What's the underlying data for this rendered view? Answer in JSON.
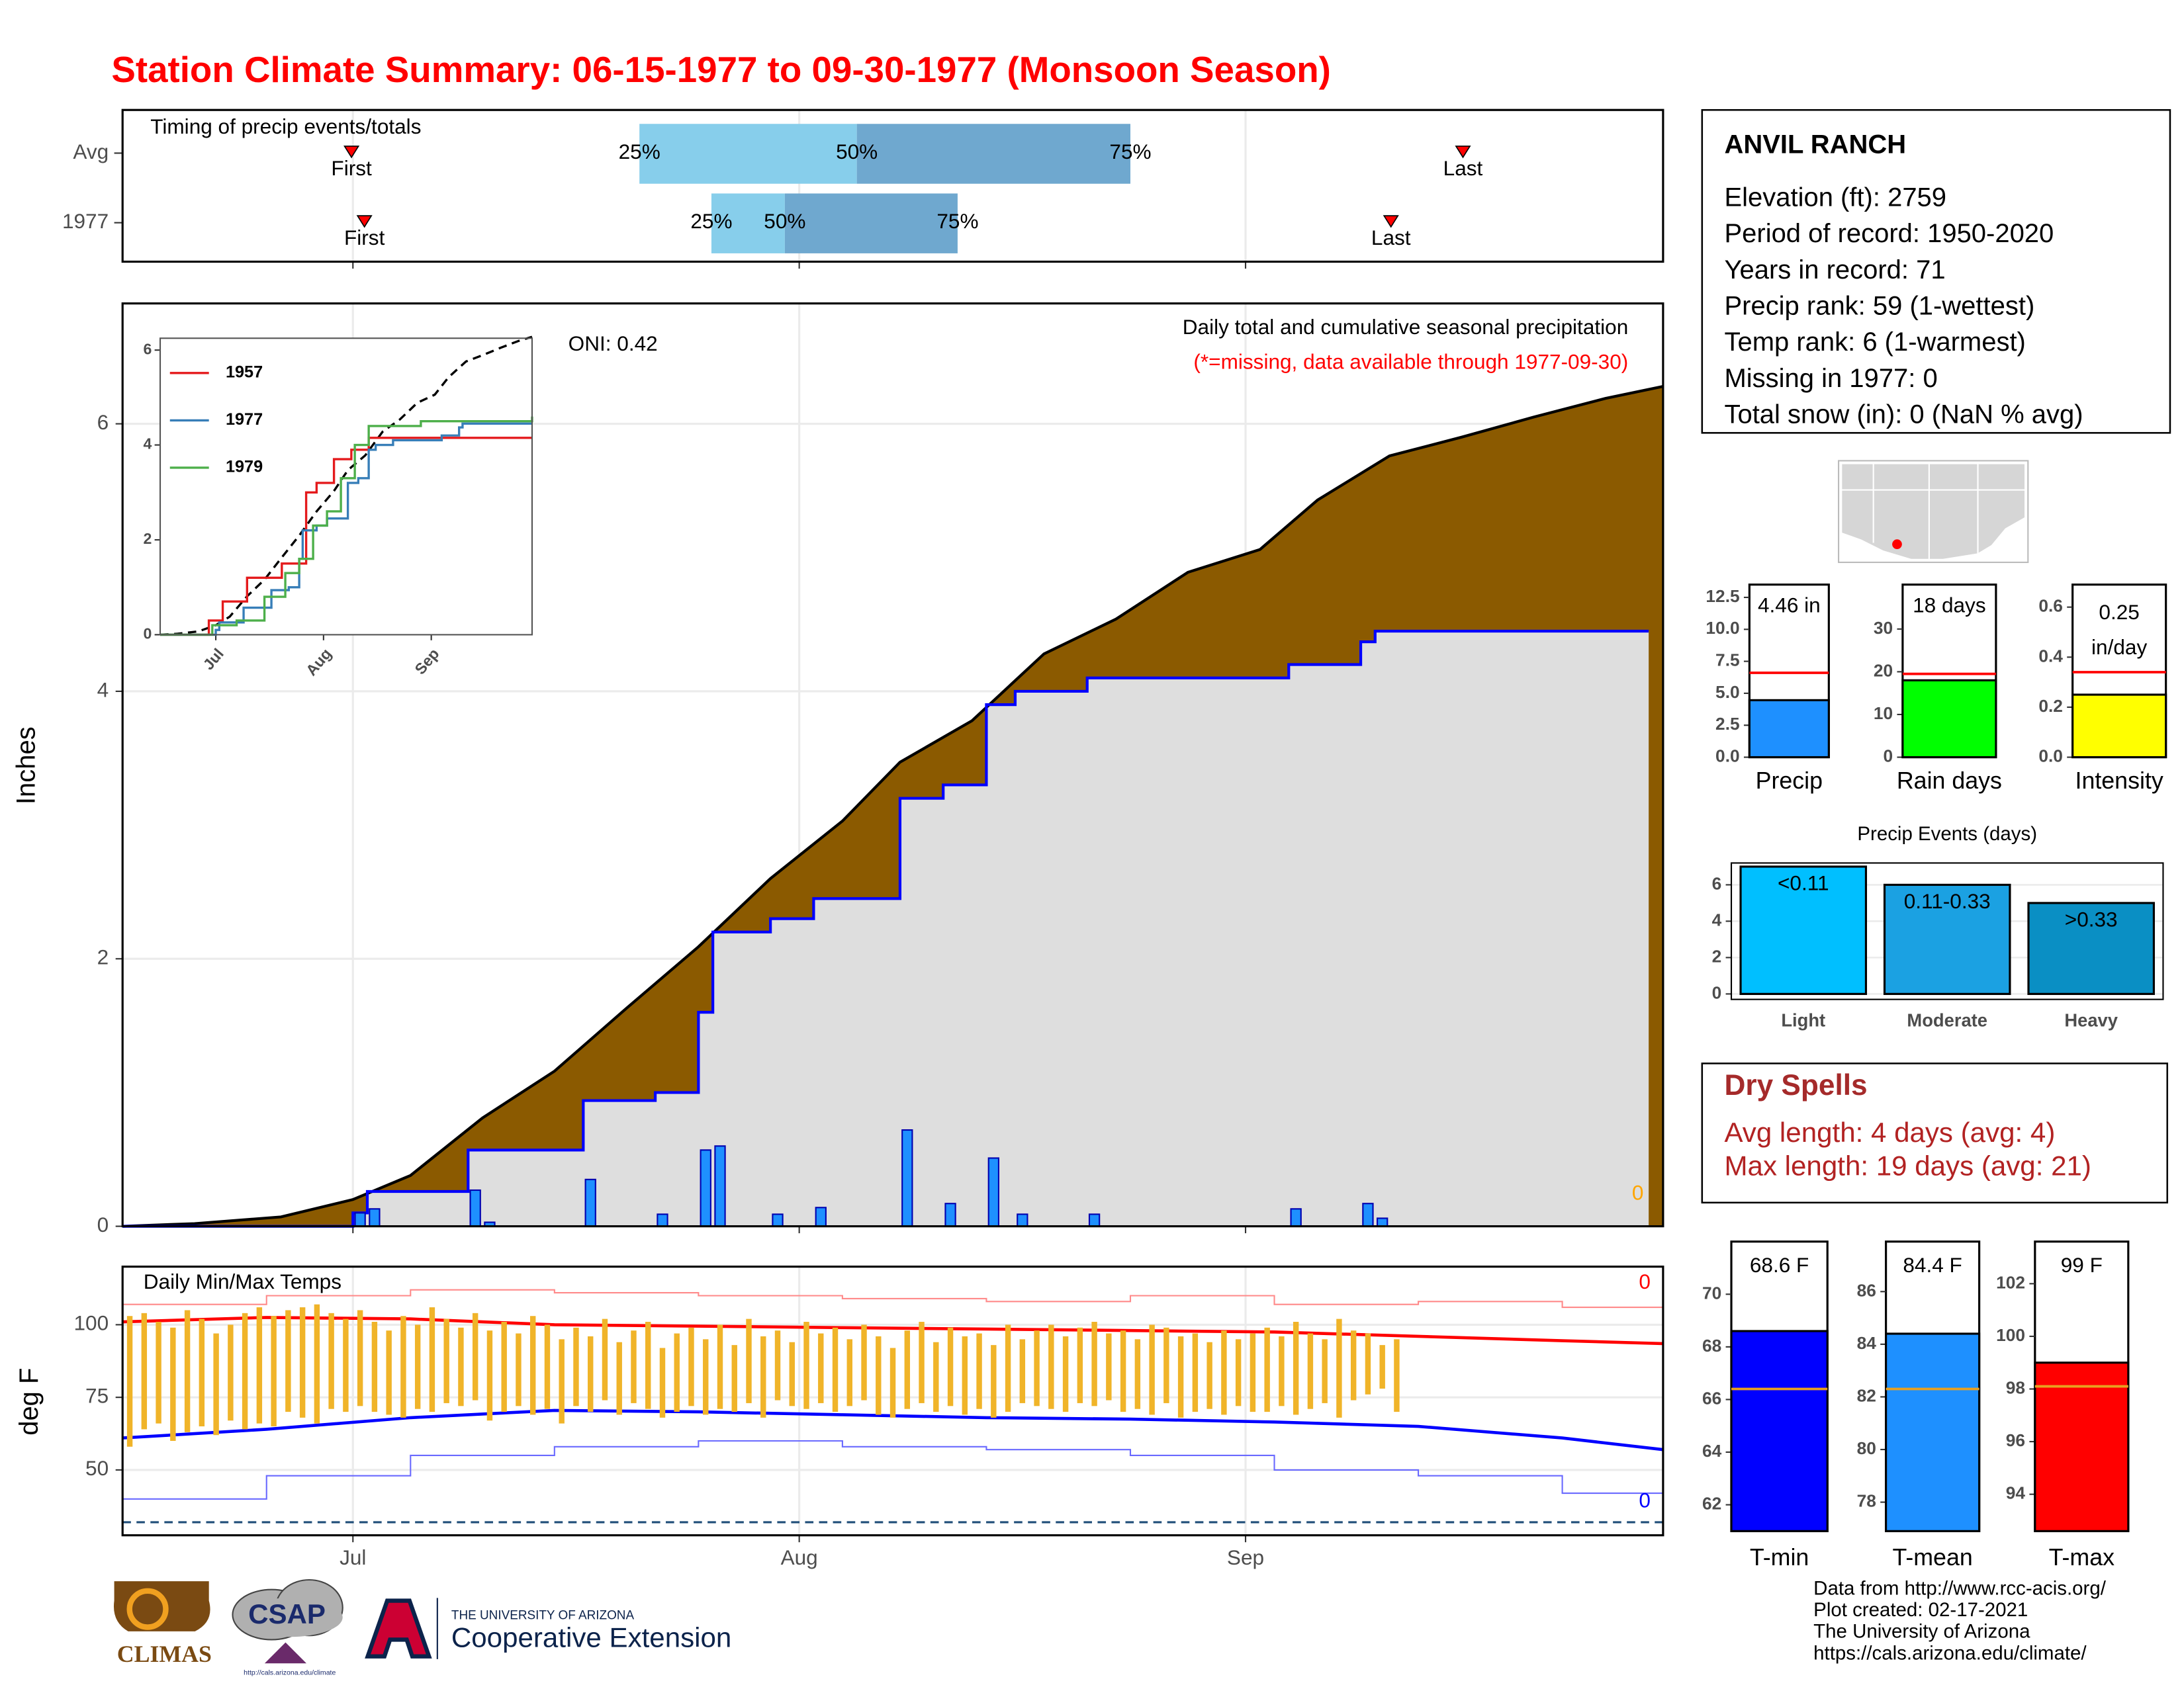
{
  "header": {
    "title": "Station Climate Summary: 06-15-1977 to 09-30-1977 (Monsoon Season)"
  },
  "station": {
    "name": "ANVIL RANCH",
    "lines": [
      "Elevation (ft): 2759",
      "Period of record: 1950-2020",
      "Years in record: 71",
      "Precip rank: 59 (1-wettest)",
      "Temp rank: 6 (1-warmest)",
      "Missing in 1977: 0",
      "Total snow (in): 0 (NaN % avg)"
    ]
  },
  "dry_spells": {
    "title": "Dry Spells",
    "lines": [
      "Avg length: 4 days (avg: 4)",
      "Max length: 19 days (avg: 21)"
    ]
  },
  "footer": {
    "climas": "CLIMAS",
    "csap": "CSAP",
    "csap_url": "http://cals.arizona.edu/climate",
    "ua_name": "THE UNIVERSITY OF ARIZONA",
    "ua_unit": "Cooperative Extension",
    "credits": [
      "Data from http://www.rcc-acis.org/",
      "Plot created: 02-17-2021",
      "The University of Arizona",
      "https://cals.arizona.edu/climate/"
    ]
  },
  "chart_data": [
    {
      "type": "timing",
      "title": "Timing of precip events/totals",
      "categories": [
        "Avg",
        "1977"
      ],
      "first": [
        15.9,
        16.8
      ],
      "q25": [
        35.9,
        40.9
      ],
      "q50": [
        51,
        46
      ],
      "q75": [
        70,
        58
      ],
      "last": [
        93.1,
        88.1
      ],
      "marker_labels": [
        "First",
        "Last"
      ],
      "quantile_labels": [
        "25%",
        "50%",
        "75%"
      ],
      "colors": [
        "#87ceeb",
        "#6fa8cf"
      ],
      "marker_color": "#ff0000",
      "xlim": [
        0,
        107
      ],
      "xticks": [
        16,
        47,
        78
      ],
      "grid": true
    },
    {
      "type": "precip",
      "title": "Daily total and cumulative seasonal precipitation",
      "subtitle": "(*=missing, data available through 1977-09-30)",
      "subtitle_color": "#ff0000",
      "annotation": "ONI: 0.42",
      "missing_count": 0,
      "missing_color": "#ffa500",
      "y_label": "Inches",
      "xlim": [
        0,
        107
      ],
      "ylim": [
        0,
        6.9
      ],
      "yticks": [
        0,
        2,
        4,
        6
      ],
      "xticks": [
        16,
        47,
        78
      ],
      "grid": true,
      "avg": {
        "color": "#8b5a00",
        "x": [
          0,
          5,
          11,
          16,
          20,
          25,
          30,
          35,
          40,
          45,
          50,
          54,
          59,
          64,
          69,
          74,
          79,
          83,
          88,
          93,
          98,
          103,
          107
        ],
        "values": [
          0,
          0.02,
          0.07,
          0.2,
          0.38,
          0.81,
          1.16,
          1.63,
          2.09,
          2.6,
          3.03,
          3.47,
          3.78,
          4.28,
          4.54,
          4.89,
          5.06,
          5.43,
          5.76,
          5.9,
          6.05,
          6.19,
          6.28
        ]
      },
      "season": {
        "color": "#0000ff",
        "fill": "#dedede",
        "x": [
          0,
          16,
          17,
          24,
          32,
          37,
          40,
          41,
          45,
          48,
          54,
          57,
          60,
          62,
          67,
          81,
          86,
          87,
          106
        ],
        "values": [
          0,
          0.1,
          0.26,
          0.57,
          0.94,
          1.0,
          1.6,
          2.2,
          2.3,
          2.45,
          3.2,
          3.3,
          3.9,
          4.0,
          4.1,
          4.2,
          4.37,
          4.45,
          4.45
        ]
      },
      "daily": {
        "color": "#1e90ff",
        "x": [
          16,
          17,
          24,
          25,
          32,
          37,
          40,
          41,
          45,
          48,
          54,
          57,
          60,
          62,
          67,
          81,
          86,
          87
        ],
        "values": [
          0.1,
          0.13,
          0.27,
          0.03,
          0.35,
          0.09,
          0.57,
          0.6,
          0.09,
          0.14,
          0.72,
          0.17,
          0.51,
          0.09,
          0.09,
          0.13,
          0.17,
          0.06
        ]
      }
    },
    {
      "type": "line",
      "xlim": [
        0,
        107
      ],
      "ylim": [
        0,
        6.25
      ],
      "yticks": [
        0,
        2,
        4,
        6
      ],
      "xticks": [
        {
          "value": 16,
          "label": "Jul"
        },
        {
          "value": 47,
          "label": "Aug"
        },
        {
          "value": 78,
          "label": "Sep"
        }
      ],
      "series": [
        {
          "name": "1957",
          "color": "#e41a1c",
          "x": [
            0,
            14,
            18,
            25,
            30,
            35,
            42,
            45,
            50,
            55,
            60,
            107
          ],
          "values": [
            0,
            0.3,
            0.7,
            1.2,
            1.2,
            1.5,
            3.0,
            3.2,
            3.7,
            3.9,
            4.15,
            4.15
          ]
        },
        {
          "name": "1977",
          "color": "#377eb8",
          "x": [
            0,
            16,
            17,
            24,
            32,
            37,
            40,
            41,
            45,
            48,
            54,
            57,
            60,
            62,
            67,
            81,
            86,
            87,
            107
          ],
          "values": [
            0,
            0.1,
            0.26,
            0.57,
            0.94,
            1.0,
            1.6,
            2.2,
            2.3,
            2.45,
            3.2,
            3.3,
            3.9,
            4.0,
            4.1,
            4.2,
            4.37,
            4.45,
            4.45
          ]
        },
        {
          "name": "1979",
          "color": "#4daf4a",
          "x": [
            0,
            15,
            22,
            30,
            36,
            40,
            44,
            48,
            52,
            56,
            60,
            75,
            107
          ],
          "values": [
            0,
            0.2,
            0.3,
            0.8,
            1.3,
            1.6,
            2.3,
            2.6,
            3.3,
            4.0,
            4.4,
            4.5,
            4.6
          ]
        }
      ],
      "avg": {
        "color": "#000000",
        "x": [
          0,
          5,
          11,
          16,
          20,
          25,
          30,
          35,
          40,
          45,
          50,
          54,
          59,
          64,
          69,
          74,
          79,
          83,
          88,
          93,
          98,
          103,
          107
        ],
        "values": [
          0,
          0.02,
          0.07,
          0.2,
          0.38,
          0.81,
          1.16,
          1.63,
          2.09,
          2.6,
          3.03,
          3.47,
          3.78,
          4.28,
          4.54,
          4.89,
          5.06,
          5.43,
          5.76,
          5.9,
          6.05,
          6.19,
          6.28
        ]
      }
    },
    {
      "type": "temps",
      "title": "Daily Min/Max Temps",
      "y_label": "deg F",
      "xlim": [
        0,
        107
      ],
      "ylim": [
        27.5,
        120
      ],
      "yticks": [
        50,
        75,
        100
      ],
      "xticks": [
        {
          "value": 16,
          "label": "Jul"
        },
        {
          "value": 47,
          "label": "Aug"
        },
        {
          "value": 78,
          "label": "Sep"
        }
      ],
      "grid": true,
      "bar_color": "#f0b429",
      "x": [
        0,
        1,
        2,
        3,
        4,
        5,
        6,
        7,
        8,
        9,
        10,
        11,
        12,
        13,
        14,
        15,
        16,
        17,
        18,
        19,
        20,
        21,
        22,
        23,
        24,
        25,
        26,
        27,
        28,
        29,
        30,
        31,
        32,
        33,
        34,
        35,
        36,
        37,
        38,
        39,
        40,
        41,
        42,
        43,
        44,
        45,
        46,
        47,
        48,
        49,
        50,
        51,
        52,
        53,
        54,
        55,
        56,
        57,
        58,
        59,
        60,
        61,
        62,
        63,
        64,
        65,
        66,
        67,
        68,
        69,
        70,
        71,
        72,
        73,
        74,
        75,
        76,
        77,
        78,
        79,
        80,
        81,
        82,
        83,
        84,
        85,
        86,
        87,
        88
      ],
      "max": [
        103,
        104,
        101,
        99,
        105,
        102,
        97,
        100,
        104,
        106,
        103,
        105,
        106,
        107,
        104,
        102,
        105,
        101,
        98,
        103,
        100,
        106,
        102,
        99,
        104,
        98,
        101,
        97,
        103,
        100,
        95,
        99,
        96,
        102,
        94,
        98,
        101,
        92,
        97,
        99,
        95,
        100,
        93,
        102,
        96,
        98,
        94,
        101,
        97,
        99,
        95,
        100,
        96,
        92,
        98,
        101,
        94,
        99,
        96,
        97,
        93,
        100,
        95,
        98,
        100,
        96,
        99,
        101,
        97,
        98,
        95,
        100,
        99,
        96,
        97,
        94,
        98,
        95,
        97,
        99,
        96,
        101,
        97,
        95,
        102,
        98,
        97,
        93,
        95
      ],
      "min": [
        58,
        64,
        66,
        60,
        63,
        65,
        62,
        67,
        64,
        66,
        65,
        70,
        68,
        66,
        71,
        70,
        72,
        70,
        69,
        68,
        71,
        70,
        73,
        72,
        74,
        67,
        70,
        72,
        69,
        71,
        66,
        72,
        70,
        74,
        69,
        73,
        71,
        68,
        70,
        72,
        69,
        71,
        70,
        73,
        68,
        74,
        72,
        71,
        73,
        70,
        72,
        74,
        69,
        68,
        71,
        73,
        70,
        72,
        69,
        71,
        68,
        70,
        73,
        72,
        71,
        70,
        73,
        72,
        74,
        70,
        71,
        69,
        73,
        68,
        70,
        71,
        69,
        72,
        70,
        70,
        72,
        69,
        71,
        73,
        68,
        74,
        76,
        78,
        70
      ],
      "avg_x": [
        0,
        10,
        20,
        30,
        40,
        50,
        60,
        70,
        80,
        90,
        100,
        107
      ],
      "avg_max": [
        101,
        102.5,
        102,
        100,
        99.5,
        99,
        98.5,
        98,
        97.5,
        96,
        94.5,
        93.5
      ],
      "avg_max_color": "#ff0000",
      "avg_min": [
        61,
        64,
        68,
        70.5,
        70,
        69,
        68,
        67.5,
        66.5,
        65,
        61,
        57
      ],
      "avg_min_color": "#0000ff",
      "record_high": [
        107,
        110,
        112,
        111,
        110,
        109,
        108,
        110,
        107,
        108,
        106,
        104
      ],
      "record_high_color": "#ff8a8a",
      "record_low": [
        40,
        48,
        55,
        58,
        60,
        58,
        57,
        55,
        50,
        48,
        42,
        44
      ],
      "record_low_color": "#6a6aff",
      "record_high_count": 0,
      "record_low_count": 0,
      "freeze_line": 32,
      "freeze_color": "#1f4e79"
    },
    {
      "type": "gauge",
      "categories": [
        "Precip"
      ],
      "values": [
        4.46
      ],
      "value_labels": [
        "4.46 in"
      ],
      "color": "#1e90ff",
      "reference": [
        6.6
      ],
      "reference_color": "#ff0000",
      "ylim": [
        0,
        13.5
      ],
      "yticks": [
        {
          "value": 0,
          "label": "0.0"
        },
        2.5,
        {
          "value": 5,
          "label": "5.0"
        },
        7.5,
        {
          "value": 10,
          "label": "10.0"
        },
        12.5
      ]
    },
    {
      "type": "gauge",
      "categories": [
        "Rain days"
      ],
      "values": [
        18
      ],
      "value_labels": [
        "18 days"
      ],
      "color": "#00ff00",
      "reference": [
        19.5
      ],
      "reference_color": "#ff0000",
      "ylim": [
        0,
        40.4
      ],
      "yticks": [
        0,
        10,
        20,
        30
      ]
    },
    {
      "type": "gauge",
      "categories": [
        "Intensity"
      ],
      "values": [
        0.25
      ],
      "unit": "in/day",
      "color": "#ffff00",
      "reference": [
        0.34
      ],
      "reference_color": "#ff0000",
      "ylim": [
        0,
        0.69
      ],
      "yticks": [
        {
          "value": 0,
          "label": "0.0"
        },
        0.2,
        0.4,
        0.6
      ]
    },
    {
      "type": "bar",
      "title": "Precip Events (days)",
      "categories": [
        "Light",
        "Moderate",
        "Heavy"
      ],
      "ranges": [
        "<0.11",
        "0.11-0.33",
        ">0.33"
      ],
      "values": [
        7,
        6,
        5
      ],
      "colors": [
        "#00bfff",
        "#1ba1e2",
        "#0a8fc4"
      ],
      "ylim": [
        -0.3,
        7.2
      ],
      "yticks": [
        0,
        2,
        4,
        6
      ],
      "grid": true
    },
    {
      "type": "gauge",
      "categories": [
        "T-min"
      ],
      "values": [
        68.6
      ],
      "value_labels": [
        "68.6 F"
      ],
      "color": "#0000ff",
      "reference": [
        66.4
      ],
      "reference_color": "#e8a020",
      "ylim": [
        61,
        72
      ],
      "yticks": [
        62,
        64,
        66,
        68,
        70
      ]
    },
    {
      "type": "gauge",
      "categories": [
        "T-mean"
      ],
      "values": [
        84.4
      ],
      "value_labels": [
        "84.4 F"
      ],
      "color": "#1e90ff",
      "reference": [
        82.3
      ],
      "reference_color": "#e8a020",
      "ylim": [
        76.9,
        87.9
      ],
      "yticks": [
        78,
        80,
        82,
        84,
        86
      ]
    },
    {
      "type": "gauge",
      "categories": [
        "T-max"
      ],
      "values": [
        99
      ],
      "value_labels": [
        "99 F"
      ],
      "color": "#ff0000",
      "reference": [
        98.1
      ],
      "reference_color": "#e8a020",
      "ylim": [
        92.6,
        103.6
      ],
      "yticks": [
        94,
        96,
        98,
        100,
        102
      ]
    }
  ]
}
